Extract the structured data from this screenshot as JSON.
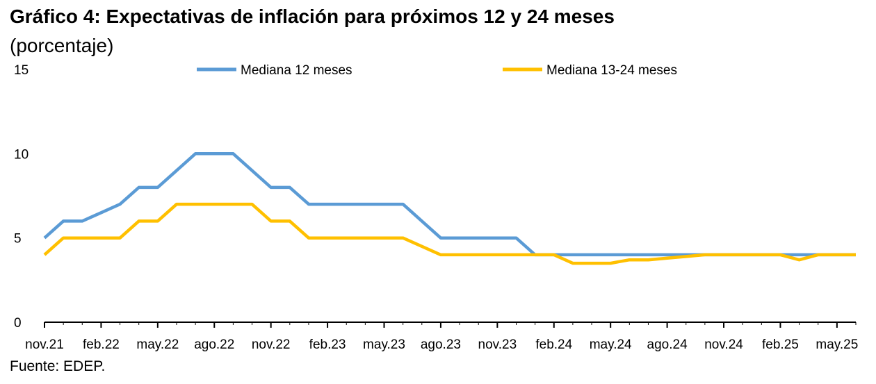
{
  "header": {
    "title": "Gráfico 4: Expectativas de inflación para próximos 12 y 24 meses",
    "subtitle": "(porcentaje)"
  },
  "footer": {
    "source": "Fuente: EDEP."
  },
  "chart_data": {
    "type": "line",
    "title": "Gráfico 4: Expectativas de inflación para próximos 12 y 24 meses",
    "subtitle": "(porcentaje)",
    "xlabel": "",
    "ylabel": "",
    "ylim": [
      0,
      15
    ],
    "yticks": [
      0,
      5,
      10,
      15
    ],
    "grid": false,
    "legend_position": "top",
    "x": [
      "nov.21",
      "dic.21",
      "ene.22",
      "feb.22",
      "mar.22",
      "abr.22",
      "may.22",
      "jun.22",
      "jul.22",
      "ago.22",
      "sep.22",
      "oct.22",
      "nov.22",
      "dic.22",
      "ene.23",
      "feb.23",
      "mar.23",
      "abr.23",
      "may.23",
      "jun.23",
      "jul.23",
      "ago.23",
      "sep.23",
      "oct.23",
      "nov.23",
      "dic.23",
      "ene.24",
      "feb.24",
      "mar.24",
      "abr.24",
      "may.24",
      "jun.24",
      "jul.24",
      "ago.24",
      "sep.24",
      "oct.24",
      "nov.24",
      "dic.24",
      "ene.25",
      "feb.25",
      "mar.25",
      "abr.25",
      "may.25",
      "jun.25"
    ],
    "xtick_labels": [
      "nov.21",
      "feb.22",
      "may.22",
      "ago.22",
      "nov.22",
      "feb.23",
      "may.23",
      "ago.23",
      "nov.23",
      "feb.24",
      "may.24",
      "ago.24",
      "nov.24",
      "feb.25",
      "may.25"
    ],
    "series": [
      {
        "name": "Mediana 12 meses",
        "color": "#5b9bd5",
        "values": [
          5,
          6,
          6,
          6.5,
          7,
          8,
          8,
          9,
          10,
          10,
          10,
          9,
          8,
          8,
          7,
          7,
          7,
          7,
          7,
          7,
          6,
          5,
          5,
          5,
          5,
          5,
          4,
          4,
          4,
          4,
          4,
          4,
          4,
          4,
          4,
          4,
          4,
          4,
          4,
          4,
          4,
          4,
          4,
          4
        ]
      },
      {
        "name": "Mediana 13-24 meses",
        "color": "#ffc000",
        "values": [
          4,
          5,
          5,
          5,
          5,
          6,
          6,
          7,
          7,
          7,
          7,
          7,
          6,
          6,
          5,
          5,
          5,
          5,
          5,
          5,
          4.5,
          4,
          4,
          4,
          4,
          4,
          4,
          4,
          3.5,
          3.5,
          3.5,
          3.7,
          3.7,
          3.8,
          3.9,
          4,
          4,
          4,
          4,
          4,
          3.7,
          4,
          4,
          4
        ]
      }
    ]
  }
}
